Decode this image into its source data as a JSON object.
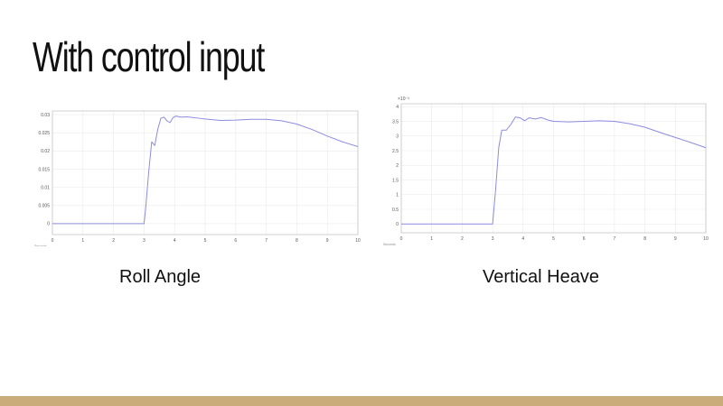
{
  "slide": {
    "title": "With control input",
    "footer_color": "#c9ac7a"
  },
  "captions": {
    "left": "Roll Angle",
    "right": "Vertical Heave"
  },
  "chart_data": [
    {
      "type": "line",
      "xlim": [
        0,
        10
      ],
      "ylim": [
        -0.003,
        0.031
      ],
      "x_ticks": [
        "0",
        "1",
        "2",
        "3",
        "4",
        "5",
        "6",
        "7",
        "8",
        "9",
        "10"
      ],
      "y_ticks": [
        {
          "value": 0,
          "label": "0"
        },
        {
          "value": 0.005,
          "label": "0.005"
        },
        {
          "value": 0.01,
          "label": "0.01"
        },
        {
          "value": 0.015,
          "label": "0.015"
        },
        {
          "value": 0.02,
          "label": "0.02"
        },
        {
          "value": 0.025,
          "label": "0.025"
        },
        {
          "value": 0.03,
          "label": "0.03"
        }
      ],
      "x_axis_note": "Seconds",
      "grid": true,
      "series_color": "#8c8ce0",
      "x": [
        0,
        3.0,
        3.05,
        3.15,
        3.25,
        3.35,
        3.45,
        3.55,
        3.65,
        3.75,
        3.85,
        3.95,
        4.05,
        4.2,
        4.4,
        4.6,
        4.8,
        5.0,
        5.5,
        6.0,
        6.5,
        7.0,
        7.5,
        8.0,
        8.5,
        9.0,
        9.5,
        10.0
      ],
      "y": [
        0,
        0,
        0.004,
        0.014,
        0.0225,
        0.0215,
        0.026,
        0.029,
        0.0293,
        0.0283,
        0.0278,
        0.0292,
        0.0296,
        0.0293,
        0.0294,
        0.0292,
        0.029,
        0.0288,
        0.0284,
        0.0285,
        0.0287,
        0.0287,
        0.0283,
        0.0274,
        0.0259,
        0.0241,
        0.0225,
        0.0212
      ]
    },
    {
      "type": "line",
      "xlim": [
        0,
        10
      ],
      "ylim": [
        -0.3,
        4.1
      ],
      "x_ticks": [
        "0",
        "1",
        "2",
        "3",
        "4",
        "5",
        "6",
        "7",
        "8",
        "9",
        "10"
      ],
      "y_ticks": [
        {
          "value": 0,
          "label": "0"
        },
        {
          "value": 0.5,
          "label": "0.5"
        },
        {
          "value": 1,
          "label": "1"
        },
        {
          "value": 1.5,
          "label": "1.5"
        },
        {
          "value": 2,
          "label": "2"
        },
        {
          "value": 2.5,
          "label": "2.5"
        },
        {
          "value": 3,
          "label": "3"
        },
        {
          "value": 3.5,
          "label": "3.5"
        },
        {
          "value": 4,
          "label": "4"
        }
      ],
      "y_multiplier": "×10⁻³",
      "x_axis_note": "Seconds",
      "grid": true,
      "series_color": "#8c8ce0",
      "x": [
        0,
        3.0,
        3.1,
        3.2,
        3.3,
        3.45,
        3.6,
        3.75,
        3.9,
        4.05,
        4.2,
        4.4,
        4.6,
        4.8,
        5.0,
        5.5,
        6.0,
        6.5,
        7.0,
        7.5,
        8.0,
        8.5,
        9.0,
        9.5,
        10.0
      ],
      "y": [
        0,
        0,
        1.2,
        2.6,
        3.2,
        3.2,
        3.4,
        3.65,
        3.62,
        3.52,
        3.62,
        3.58,
        3.63,
        3.55,
        3.5,
        3.48,
        3.5,
        3.52,
        3.5,
        3.42,
        3.3,
        3.12,
        2.95,
        2.78,
        2.6
      ]
    }
  ]
}
